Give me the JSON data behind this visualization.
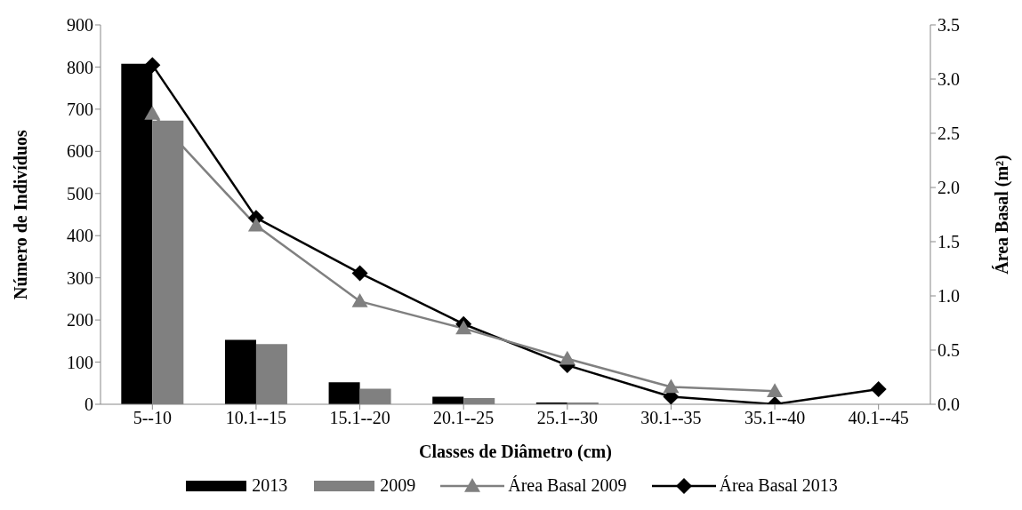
{
  "chart_data": {
    "type": "bar",
    "categories": [
      "5--10",
      "10.1--15",
      "15.1--20",
      "20.1--25",
      "25.1--30",
      "30.1--35",
      "35.1--40",
      "40.1--45"
    ],
    "series": [
      {
        "name": "2013",
        "color": "#000000",
        "values": [
          808,
          153,
          52,
          18,
          4,
          0,
          0,
          0
        ]
      },
      {
        "name": "2009",
        "color": "#808080",
        "values": [
          673,
          143,
          37,
          15,
          4,
          0,
          0,
          0
        ]
      },
      {
        "name": "Área Basal 2009",
        "type": "line",
        "axis": "y2",
        "marker": "triangle",
        "color": "#808080",
        "values": [
          2.68,
          1.65,
          0.95,
          0.7,
          0.42,
          0.16,
          0.12,
          null
        ]
      },
      {
        "name": "Área Basal 2013",
        "type": "line",
        "axis": "y2",
        "marker": "diamond",
        "color": "#000000",
        "values": [
          3.13,
          1.72,
          1.21,
          0.74,
          0.36,
          0.07,
          0.0,
          0.14
        ]
      }
    ],
    "xlabel": "Classes de Diâmetro (cm)",
    "ylabel": "Número de Indivíduos",
    "y2label": "Área Basal (m²)",
    "ylim": [
      0,
      900
    ],
    "yticks": [
      0,
      100,
      200,
      300,
      400,
      500,
      600,
      700,
      800,
      900
    ],
    "y2lim": [
      0,
      3.5
    ],
    "y2ticks": [
      {
        "value": 0,
        "label": "0.0"
      },
      {
        "value": 0.5,
        "label": "0.5"
      },
      {
        "value": 1,
        "label": "1.0"
      },
      {
        "value": 1.5,
        "label": "1.5"
      },
      {
        "value": 2,
        "label": "2.0"
      },
      {
        "value": 2.5,
        "label": "2.5"
      },
      {
        "value": 3,
        "label": "3.0"
      },
      {
        "value": 3.5,
        "label": "3.5"
      }
    ],
    "grid": false,
    "legend": "bottom"
  }
}
